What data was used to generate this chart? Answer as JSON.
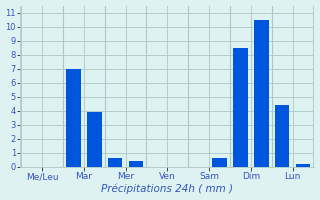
{
  "values": [
    0,
    0,
    7.0,
    3.9,
    0.6,
    0.4,
    0,
    0,
    0,
    0.6,
    8.5,
    10.5,
    4.4,
    0.2
  ],
  "bar_color": "#0055dd",
  "background_color": "#dff2f2",
  "grid_color": "#aac8c8",
  "tick_label_color": "#3355bb",
  "xlabel": "Précipitations 24h ( mm )",
  "ylim": [
    0,
    11.5
  ],
  "yticks": [
    0,
    1,
    2,
    3,
    4,
    5,
    6,
    7,
    8,
    9,
    10,
    11
  ],
  "day_labels": [
    "Me∕Leu",
    "Mar",
    "Mer",
    "Ven",
    "Sam",
    "Dim",
    "Lun"
  ],
  "day_sep_positions": [
    1.5,
    3.5,
    5.5,
    7.5,
    9.5,
    11.5
  ],
  "n_bars": 14,
  "bar_width": 0.7
}
